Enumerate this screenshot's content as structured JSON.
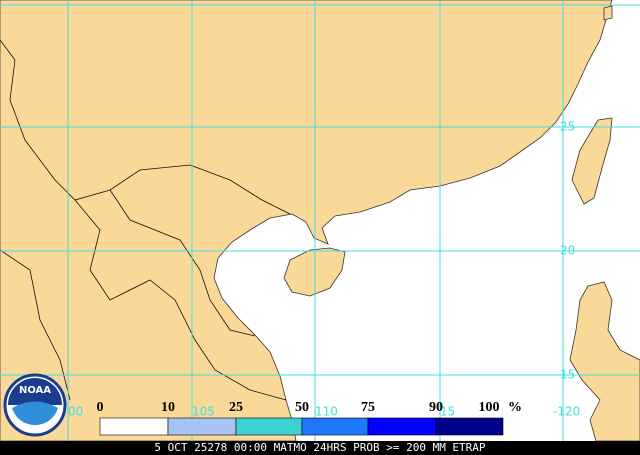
{
  "map": {
    "lat_labels": [
      "25",
      "20",
      "15"
    ],
    "lon_labels": [
      "00",
      "105",
      "110",
      "15",
      "-120"
    ],
    "legend": {
      "ticks": [
        0,
        10,
        25,
        50,
        75,
        90,
        100
      ],
      "unit": "%",
      "colors": [
        "#ffffff",
        "#a8c4f4",
        "#3cd2d2",
        "#1e78ff",
        "#0000ff",
        "#00008c"
      ]
    },
    "logo": "NOAA",
    "caption": "5 OCT 25278 00:00 MATMO 24HRS PROB >= 200 MM ETRAP"
  }
}
